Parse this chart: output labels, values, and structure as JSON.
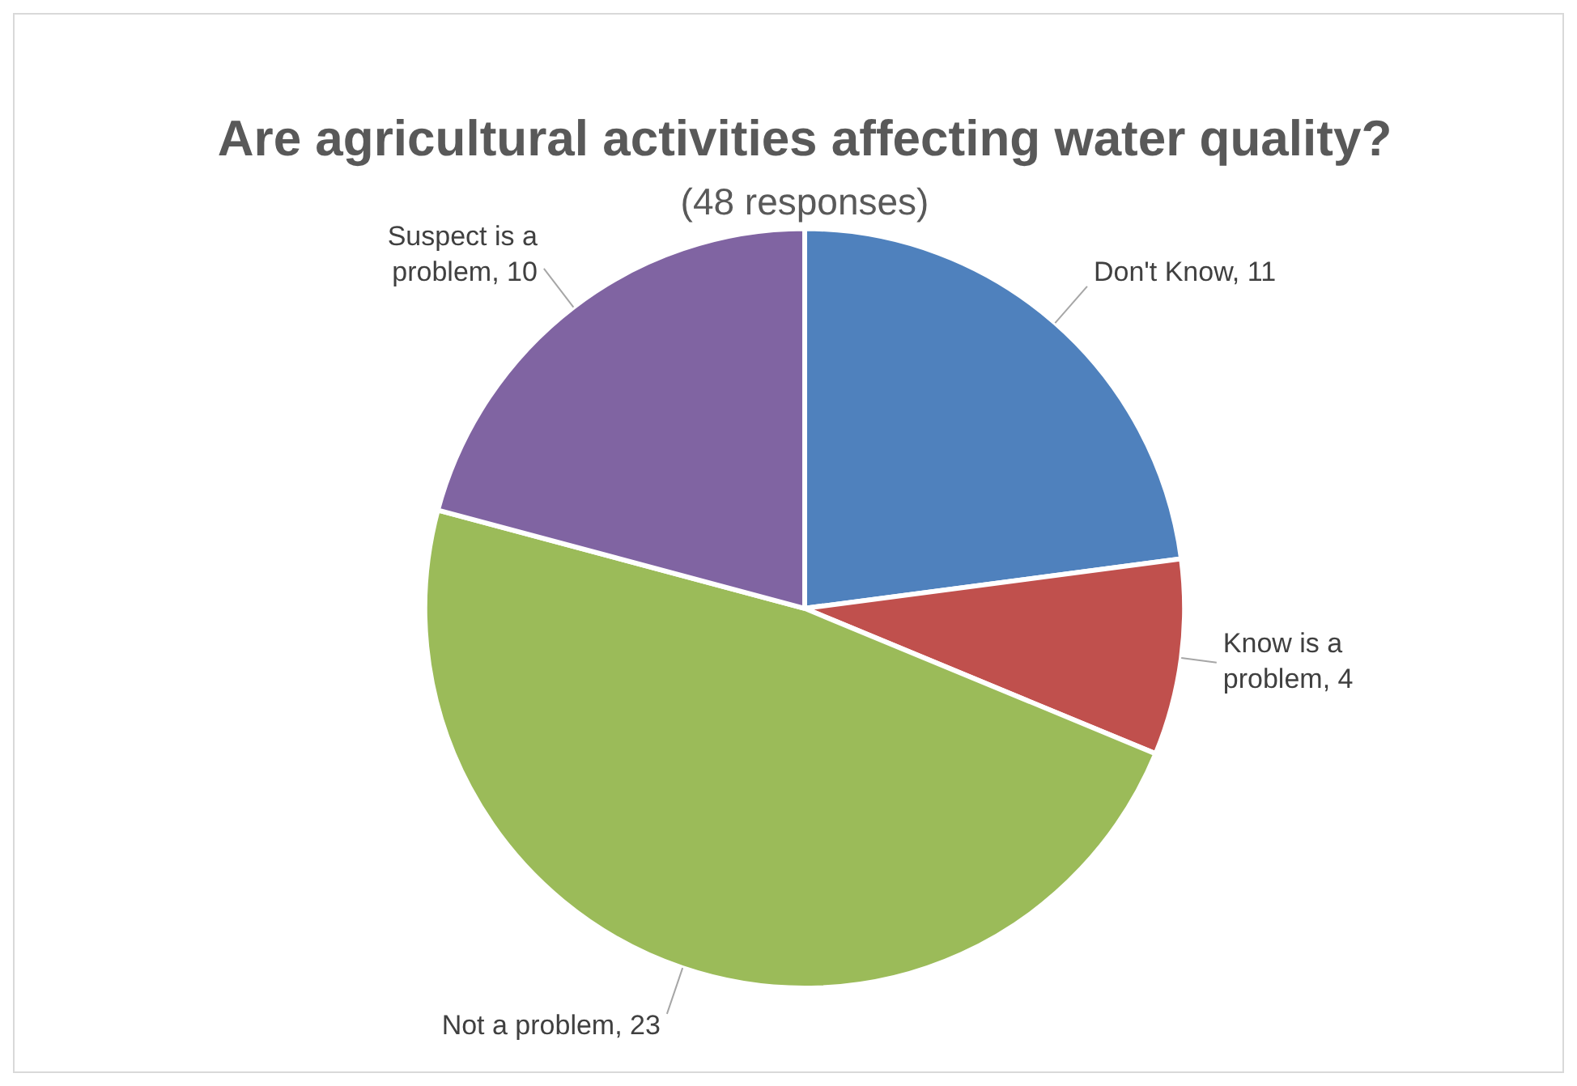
{
  "chart_data": {
    "type": "pie",
    "title": "Are agricultural activities affecting water quality?",
    "subtitle": "(48 responses)",
    "categories": [
      "Don't Know",
      "Know is a problem",
      "Not a problem",
      "Suspect is a problem"
    ],
    "values": [
      11,
      4,
      23,
      10
    ],
    "value_labels": [
      ", 11",
      ", 4",
      ", 23",
      ", 10"
    ],
    "colors": [
      "#4f81bd",
      "#c0504d",
      "#9bbb59",
      "#8064a2"
    ],
    "legend": false
  }
}
